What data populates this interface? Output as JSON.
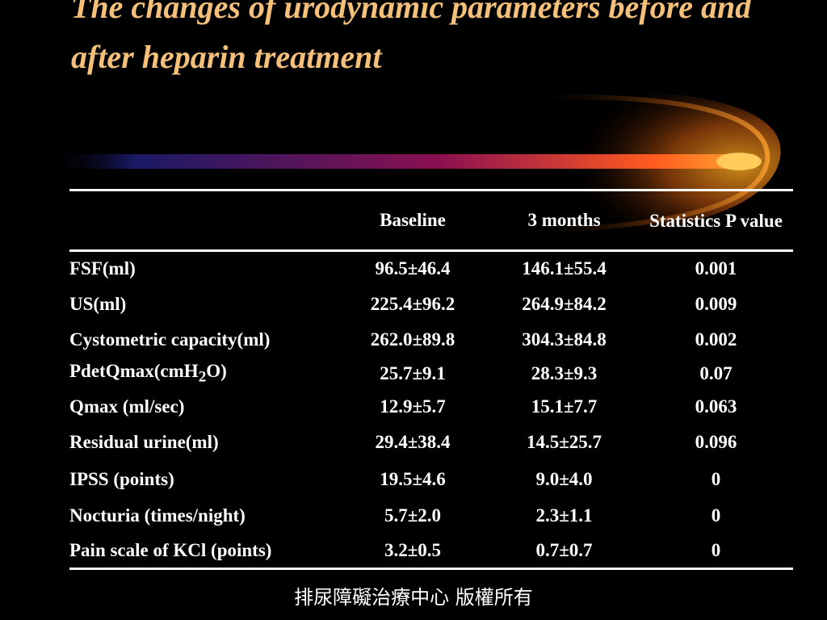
{
  "slide": {
    "title": "The changes of urodynamic parameters before and after heparin treatment",
    "footer": "排尿障礙治療中心 版權所有"
  },
  "table": {
    "headers": [
      "",
      "Baseline",
      "3 months",
      "Statistics P value"
    ],
    "rows": [
      {
        "parameter": "FSF(ml)",
        "baseline": "96.5±46.4",
        "three_months": "146.1±55.4",
        "p_value": "0.001"
      },
      {
        "parameter": "US(ml)",
        "baseline": "225.4±96.2",
        "three_months": "264.9±84.2",
        "p_value": "0.009"
      },
      {
        "parameter": "Cystometric capacity(ml)",
        "baseline": "262.0±89.8",
        "three_months": "304.3±84.8",
        "p_value": "0.002"
      },
      {
        "parameter_prefix": "PdetQmax(cmH",
        "parameter_sub": "2",
        "parameter_suffix": "O)",
        "baseline": "25.7±9.1",
        "three_months": "28.3±9.3",
        "p_value": "0.07"
      },
      {
        "parameter": "Qmax (ml/sec)",
        "baseline": "12.9±5.7",
        "three_months": "15.1±7.7",
        "p_value": "0.063"
      },
      {
        "parameter": "Residual urine(ml)",
        "baseline": "29.4±38.4",
        "three_months": "14.5±25.7",
        "p_value": "0.096"
      },
      {
        "parameter": "IPSS (points)",
        "baseline": "19.5±4.6",
        "three_months": "9.0±4.0",
        "p_value": "0"
      },
      {
        "parameter": "Nocturia (times/night)",
        "baseline": "5.7±2.0",
        "three_months": "2.3±1.1",
        "p_value": "0"
      },
      {
        "parameter": "Pain scale of KCl (points)",
        "baseline": "3.2±0.5",
        "three_months": "0.7±0.7",
        "p_value": "0"
      }
    ]
  },
  "colors": {
    "background": "#000000",
    "title": "#f4c07a",
    "text": "#ffffff",
    "streak_start": "#1a1a66",
    "streak_mid": "#8a1050",
    "streak_end": "#ff8a1c",
    "glow": "#ffa020"
  }
}
